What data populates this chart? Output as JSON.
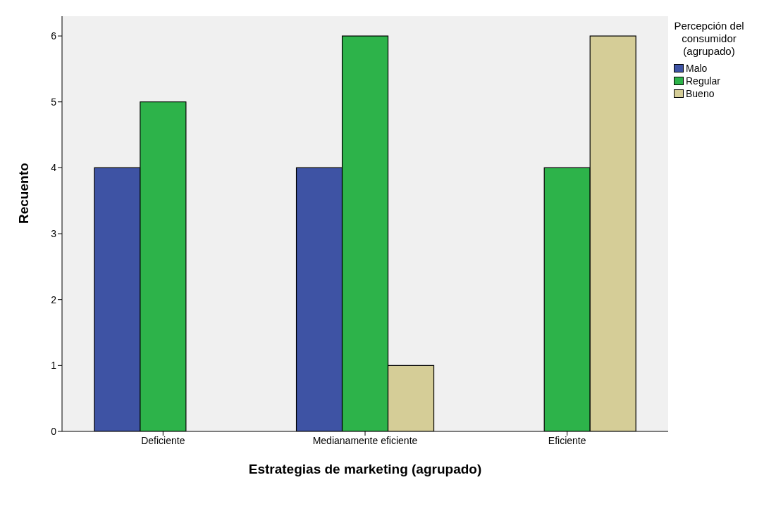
{
  "chart_data": {
    "type": "bar",
    "xlabel": "Estrategias de marketing (agrupado)",
    "ylabel": "Recuento",
    "legend_title": "Percepción del consumidor (agrupado)",
    "legend": "right",
    "categories": [
      "Deficiente",
      "Medianamente eficiente",
      "Eficiente"
    ],
    "series": [
      {
        "name": "Malo",
        "color": "#3e53a4",
        "values": [
          4,
          4,
          null
        ]
      },
      {
        "name": "Regular",
        "color": "#2db34a",
        "values": [
          5,
          6,
          4
        ]
      },
      {
        "name": "Bueno",
        "color": "#d5cd97",
        "values": [
          null,
          1,
          6
        ]
      }
    ],
    "ylim": [
      0,
      6.3
    ],
    "yticks": [
      0,
      1,
      2,
      3,
      4,
      5,
      6
    ]
  }
}
